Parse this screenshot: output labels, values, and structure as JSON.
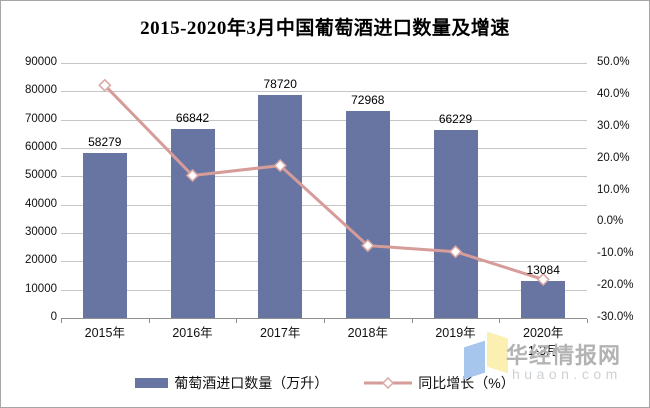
{
  "title": "2015-2020年3月中国葡萄酒进口数量及增速",
  "colors": {
    "bar": "#6874A2",
    "line": "#D59C99",
    "marker_fill": "#FFFFFF",
    "marker_stroke": "#DCA9A5",
    "gridline": "#C6C6C6",
    "axis": "#8F8F8F"
  },
  "chart_data": {
    "type": "combo_bar_line",
    "title": "2015-2020年3月中国葡萄酒进口数量及增速",
    "categories": [
      {
        "label": "2015年",
        "sublabel": ""
      },
      {
        "label": "2016年",
        "sublabel": ""
      },
      {
        "label": "2017年",
        "sublabel": ""
      },
      {
        "label": "2018年",
        "sublabel": ""
      },
      {
        "label": "2019年",
        "sublabel": ""
      },
      {
        "label": "2020年",
        "sublabel": "1-3月"
      }
    ],
    "series": [
      {
        "name": "葡萄酒进口数量（万升）",
        "type": "bar",
        "axis": "left",
        "values": [
          58279,
          66842,
          78720,
          72968,
          66229,
          13084
        ],
        "data_labels": [
          "58279",
          "66842",
          "78720",
          "72968",
          "66229",
          "13084"
        ]
      },
      {
        "name": "同比增长（%）",
        "type": "line",
        "axis": "right",
        "values": [
          43.0,
          14.7,
          17.8,
          -7.3,
          -9.2,
          -17.9
        ]
      }
    ],
    "left_axis": {
      "min": 0,
      "max": 90000,
      "step": 10000,
      "ticks": [
        "90000",
        "80000",
        "70000",
        "60000",
        "50000",
        "40000",
        "30000",
        "20000",
        "10000",
        "0"
      ]
    },
    "right_axis": {
      "min": -30,
      "max": 50,
      "step": 10,
      "ticks": [
        "50.0%",
        "40.0%",
        "30.0%",
        "20.0%",
        "10.0%",
        "0.0%",
        "-10.0%",
        "-20.0%",
        "-30.0%"
      ]
    },
    "grid": true,
    "legend_position": "bottom"
  },
  "legend": {
    "bar_label": "葡萄酒进口数量（万升）",
    "line_label": "同比增长（%）"
  },
  "watermark": {
    "name": "华经情报网",
    "url": "huaon.com"
  }
}
